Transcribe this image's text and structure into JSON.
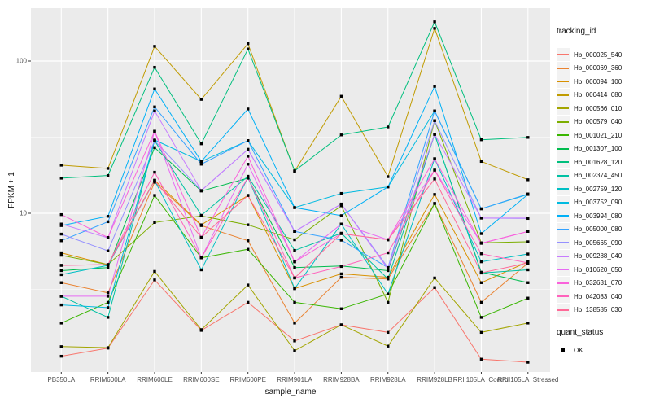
{
  "chart_data": {
    "type": "line",
    "title": "",
    "xlabel": "sample_name",
    "ylabel": "FPKM + 1",
    "y_scale": "log10",
    "y_ticks": [
      100,
      10
    ],
    "y_minor_ticks": [
      31.62,
      3.162
    ],
    "ylim": [
      0.9,
      225
    ],
    "grid": "ggplot-grey-panel-white-gridlines",
    "legend_position": "right",
    "point_marker": "black-square",
    "categories": [
      "PB350LA",
      "RRIM600LA",
      "RRIM600LE",
      "RRIM600SE",
      "RRIM600PE",
      "RRIM901LA",
      "RRIM928BA",
      "RRIM928LA",
      "RRIM928LB",
      "RRII105LA_Control",
      "RRII105LA_Stressed"
    ],
    "series": [
      {
        "name": "Hb_000025_540",
        "color": "#F8766D",
        "values": [
          1.15,
          1.3,
          3.65,
          1.7,
          2.6,
          1.45,
          1.85,
          1.65,
          3.25,
          1.1,
          1.05
        ]
      },
      {
        "name": "Hb_000069_360",
        "color": "#EA8331",
        "values": [
          3.5,
          3.0,
          16.0,
          8.3,
          6.6,
          1.9,
          3.8,
          3.7,
          11.6,
          2.6,
          4.7
        ]
      },
      {
        "name": "Hb_000094_100",
        "color": "#D89000",
        "values": [
          5.5,
          4.6,
          16.5,
          8.4,
          13.1,
          3.2,
          4.0,
          3.8,
          13.3,
          3.5,
          4.8
        ]
      },
      {
        "name": "Hb_000414_080",
        "color": "#C09B00",
        "values": [
          20.7,
          19.7,
          125.0,
          56.0,
          130.0,
          18.9,
          58.7,
          17.4,
          164.0,
          21.9,
          16.6
        ]
      },
      {
        "name": "Hb_000566_010",
        "color": "#A3A500",
        "values": [
          1.33,
          1.31,
          4.15,
          1.72,
          3.38,
          1.25,
          1.85,
          1.34,
          3.76,
          1.65,
          1.9
        ]
      },
      {
        "name": "Hb_000579_040",
        "color": "#7CAE00",
        "values": [
          5.3,
          4.6,
          8.7,
          9.6,
          8.4,
          6.7,
          11.2,
          2.6,
          40.6,
          6.4,
          6.5
        ]
      },
      {
        "name": "Hb_001021_210",
        "color": "#39B600",
        "values": [
          1.9,
          2.6,
          13.1,
          5.1,
          5.8,
          2.6,
          2.36,
          2.95,
          11.6,
          2.07,
          2.77
        ]
      },
      {
        "name": "Hb_001307_100",
        "color": "#00BB4E",
        "values": [
          4.2,
          4.4,
          27.0,
          14.0,
          17.0,
          4.4,
          4.5,
          4.2,
          33.0,
          4.1,
          3.5
        ]
      },
      {
        "name": "Hb_001628_120",
        "color": "#00BF7D",
        "values": [
          17.0,
          17.7,
          91.0,
          28.6,
          120.0,
          19.0,
          32.7,
          36.9,
          181.0,
          30.4,
          31.5
        ]
      },
      {
        "name": "Hb_002374_450",
        "color": "#00C1A3",
        "values": [
          2.85,
          2.07,
          30.0,
          9.7,
          17.5,
          5.7,
          7.4,
          3.7,
          33.0,
          4.05,
          4.25
        ]
      },
      {
        "name": "Hb_002759_120",
        "color": "#00BFC4",
        "values": [
          3.95,
          4.55,
          16.4,
          4.25,
          17.2,
          3.2,
          8.5,
          2.95,
          22.8,
          4.8,
          5.4
        ]
      },
      {
        "name": "Hb_003752_090",
        "color": "#00BAE0",
        "values": [
          2.5,
          2.4,
          30.3,
          21.9,
          30.0,
          10.9,
          13.5,
          14.9,
          47.0,
          10.7,
          13.3
        ]
      },
      {
        "name": "Hb_003994_080",
        "color": "#00B0F6",
        "values": [
          8.3,
          9.55,
          65.6,
          21.9,
          48.4,
          10.9,
          9.65,
          14.9,
          68.2,
          7.35,
          13.3
        ]
      },
      {
        "name": "Hb_005000_080",
        "color": "#35A2FF",
        "values": [
          6.6,
          8.8,
          50.0,
          21.0,
          30.0,
          7.6,
          6.66,
          4.4,
          47.0,
          10.7,
          13.4
        ]
      },
      {
        "name": "Hb_005665_090",
        "color": "#9590FF",
        "values": [
          7.3,
          5.66,
          30.0,
          14.1,
          26.3,
          7.6,
          11.5,
          4.4,
          40.6,
          9.3,
          9.25
        ]
      },
      {
        "name": "Hb_009288_040",
        "color": "#C77CFF",
        "values": [
          8.5,
          6.9,
          47.0,
          14.1,
          26.3,
          7.6,
          11.5,
          4.3,
          33.0,
          9.3,
          9.3
        ]
      },
      {
        "name": "Hb_010620_050",
        "color": "#E76BF3",
        "values": [
          2.85,
          2.85,
          34.6,
          5.1,
          21.0,
          4.8,
          8.5,
          6.7,
          19.2,
          6.35,
          7.6
        ]
      },
      {
        "name": "Hb_032631_070",
        "color": "#FA62DB",
        "values": [
          9.8,
          6.94,
          34.6,
          6.95,
          23.7,
          4.8,
          7.35,
          6.7,
          22.8,
          6.35,
          7.6
        ]
      },
      {
        "name": "Hb_042083_040",
        "color": "#FF62BC",
        "values": [
          4.55,
          4.6,
          18.6,
          5.1,
          17.2,
          3.76,
          4.47,
          5.5,
          19.2,
          5.42,
          4.72
        ]
      },
      {
        "name": "Hb_138585_030",
        "color": "#FF6A98",
        "values": [
          4.55,
          4.6,
          16.4,
          6.95,
          13.1,
          3.76,
          7.35,
          6.7,
          16.8,
          4.06,
          4.72
        ]
      }
    ],
    "legend": {
      "title": "tracking_id",
      "quant_title": "quant_status",
      "quant_items": [
        "OK"
      ]
    },
    "colors": {
      "panel_background": "#EBEBEB",
      "gridline": "#FFFFFF",
      "axis_text": "#4D4D4D",
      "tick_mark": "#333333",
      "point": "#000000",
      "legend_key_background": "#F2F2F2"
    }
  }
}
